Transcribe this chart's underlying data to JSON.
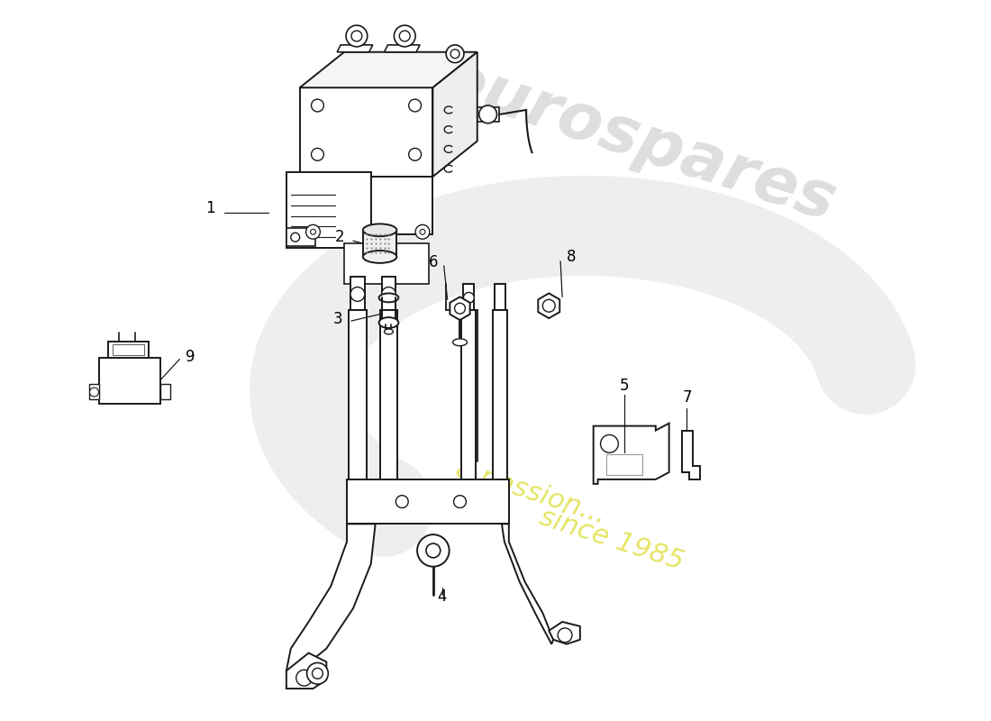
{
  "background_color": "#ffffff",
  "line_color": "#1a1a1a",
  "line_width": 1.4,
  "label_fontsize": 12,
  "figsize": [
    11.0,
    8.0
  ],
  "dpi": 100,
  "watermark": {
    "swirl_color": "#e8e8e8",
    "text_color": "#d0d0d0",
    "yellow_color": "#d4d400",
    "text1": "eurospares",
    "text2_line1": "a passion...",
    "text2_line2": "since 1985"
  }
}
